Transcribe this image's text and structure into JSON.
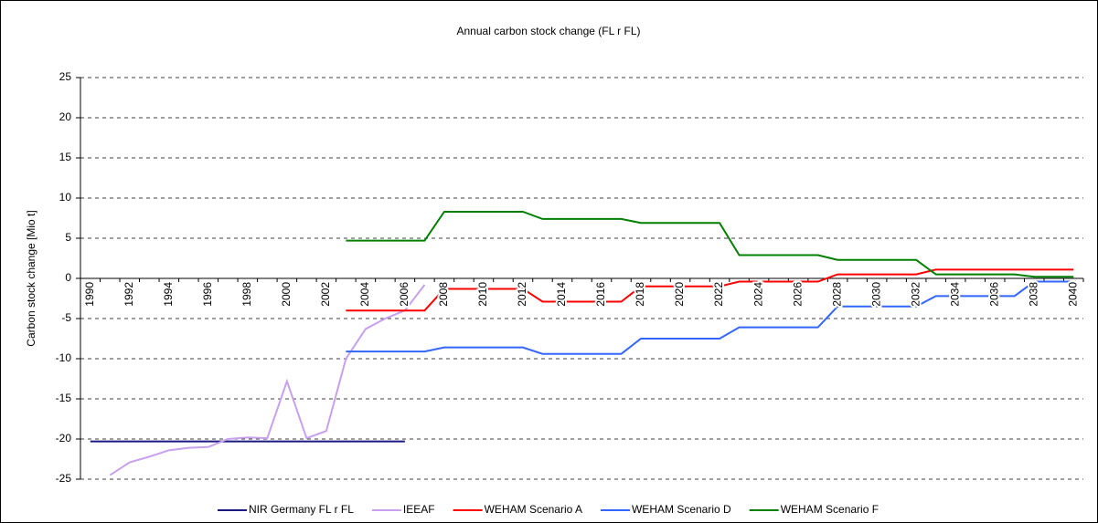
{
  "chart_data": {
    "type": "line",
    "title": "Annual carbon stock change (FL r FL)",
    "y_label": "Carbon stock change [Mio t]",
    "categories": [
      "1990",
      null,
      "1992",
      null,
      "1994",
      null,
      "1996",
      null,
      "1998",
      null,
      "2000",
      null,
      "2002",
      null,
      "2004",
      null,
      "2006",
      null,
      "2008",
      null,
      "2010",
      null,
      "2012",
      null,
      "2014",
      null,
      "2016",
      null,
      "2018",
      null,
      "2020",
      null,
      "2022",
      null,
      "2024",
      null,
      "2026",
      null,
      "2028",
      null,
      "2030",
      null,
      "2032",
      null,
      "2034",
      null,
      "2036",
      null,
      "2038",
      null,
      "2040"
    ],
    "ylim": [
      -25,
      25
    ],
    "yticks": [
      -25,
      -20,
      -15,
      -10,
      -5,
      0,
      5,
      10,
      15,
      20,
      25
    ],
    "grid": true,
    "legend": "bottom",
    "series": [
      {
        "name": "NIR Germany FL r FL",
        "color": "#1a1a80",
        "values": [
          -20.3,
          -20.3,
          -20.3,
          -20.3,
          -20.3,
          -20.3,
          -20.3,
          -20.3,
          -20.3,
          -20.3,
          -20.3,
          -20.3,
          -20.3,
          -20.3,
          -20.3,
          -20.3,
          -20.3,
          null,
          null,
          null,
          null,
          null,
          null,
          null,
          null,
          null,
          null,
          null,
          null,
          null,
          null,
          null,
          null,
          null,
          null,
          null,
          null,
          null,
          null,
          null,
          null,
          null,
          null,
          null,
          null,
          null,
          null,
          null,
          null,
          null,
          null
        ]
      },
      {
        "name": "IEEAF",
        "color": "#c8a0f0",
        "values": [
          null,
          -24.5,
          -22.9,
          -22.2,
          -21.4,
          -21.1,
          -21.0,
          -20.0,
          -19.8,
          -19.9,
          -12.8,
          -19.9,
          -19.0,
          -10.0,
          -6.3,
          -5.0,
          -4.0,
          -0.8,
          null,
          null,
          null,
          null,
          null,
          null,
          null,
          null,
          null,
          null,
          null,
          null,
          null,
          null,
          null,
          null,
          null,
          null,
          null,
          null,
          null,
          null,
          null,
          null,
          null,
          null,
          null,
          null,
          null,
          null,
          null,
          null,
          null
        ]
      },
      {
        "name": "WEHAM Scenario A",
        "color": "#ff0000",
        "values": [
          null,
          null,
          null,
          null,
          null,
          null,
          null,
          null,
          null,
          null,
          null,
          null,
          null,
          -4.0,
          -4.0,
          -4.0,
          -4.0,
          -4.0,
          -1.3,
          -1.3,
          -1.3,
          -1.3,
          -1.3,
          -2.9,
          -2.9,
          -2.9,
          -2.9,
          -2.9,
          -1.0,
          -1.0,
          -1.0,
          -1.0,
          -1.0,
          -0.4,
          -0.4,
          -0.4,
          -0.4,
          -0.4,
          0.5,
          0.5,
          0.5,
          0.5,
          0.5,
          1.1,
          1.1,
          1.1,
          1.1,
          1.1,
          1.1,
          1.1,
          1.1
        ]
      },
      {
        "name": "WEHAM Scenario D",
        "color": "#3366ff",
        "values": [
          null,
          null,
          null,
          null,
          null,
          null,
          null,
          null,
          null,
          null,
          null,
          null,
          null,
          -9.1,
          -9.1,
          -9.1,
          -9.1,
          -9.1,
          -8.6,
          -8.6,
          -8.6,
          -8.6,
          -8.6,
          -9.4,
          -9.4,
          -9.4,
          -9.4,
          -9.4,
          -7.5,
          -7.5,
          -7.5,
          -7.5,
          -7.5,
          -6.1,
          -6.1,
          -6.1,
          -6.1,
          -6.1,
          -3.5,
          -3.5,
          -3.5,
          -3.5,
          -3.5,
          -2.2,
          -2.2,
          -2.2,
          -2.2,
          -2.2,
          -0.4,
          -0.4,
          -0.4
        ]
      },
      {
        "name": "WEHAM Scenario F",
        "color": "#008000",
        "values": [
          null,
          null,
          null,
          null,
          null,
          null,
          null,
          null,
          null,
          null,
          null,
          null,
          null,
          4.7,
          4.7,
          4.7,
          4.7,
          4.7,
          8.3,
          8.3,
          8.3,
          8.3,
          8.3,
          7.4,
          7.4,
          7.4,
          7.4,
          7.4,
          6.9,
          6.9,
          6.9,
          6.9,
          6.9,
          2.9,
          2.9,
          2.9,
          2.9,
          2.9,
          2.3,
          2.3,
          2.3,
          2.3,
          2.3,
          0.5,
          0.5,
          0.5,
          0.5,
          0.5,
          0.2,
          0.2,
          0.2
        ]
      }
    ]
  }
}
